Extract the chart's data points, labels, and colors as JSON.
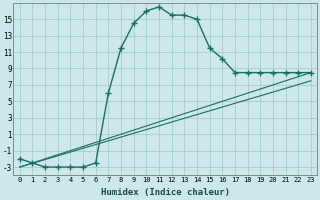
{
  "xlabel": "Humidex (Indice chaleur)",
  "bg_color": "#cce8ea",
  "grid_color": "#aacccc",
  "line_color": "#1a6e64",
  "xlim": [
    -0.5,
    23.5
  ],
  "ylim": [
    -4.0,
    17.0
  ],
  "xticks": [
    0,
    1,
    2,
    3,
    4,
    5,
    6,
    7,
    8,
    9,
    10,
    11,
    12,
    13,
    14,
    15,
    16,
    17,
    18,
    19,
    20,
    21,
    22,
    23
  ],
  "yticks": [
    -3,
    -1,
    1,
    3,
    5,
    7,
    9,
    11,
    13,
    15
  ],
  "series1_x": [
    0,
    1,
    2,
    3,
    4,
    5,
    6,
    7,
    8,
    9,
    10,
    11,
    12,
    13,
    14,
    15,
    16,
    17,
    18,
    19,
    20,
    21,
    22,
    23
  ],
  "series1_y": [
    -2,
    -2.5,
    -3,
    -3,
    -3,
    -3,
    -2.5,
    6.0,
    11.5,
    14.5,
    16.0,
    16.5,
    15.5,
    15.5,
    15.0,
    11.5,
    10.2,
    8.5,
    8.5,
    8.5,
    8.5,
    8.5,
    8.5,
    8.5
  ],
  "series2_x": [
    0,
    23
  ],
  "series2_y": [
    -3,
    7.5
  ],
  "series3_x": [
    0,
    23
  ],
  "series3_y": [
    -3,
    8.5
  ]
}
